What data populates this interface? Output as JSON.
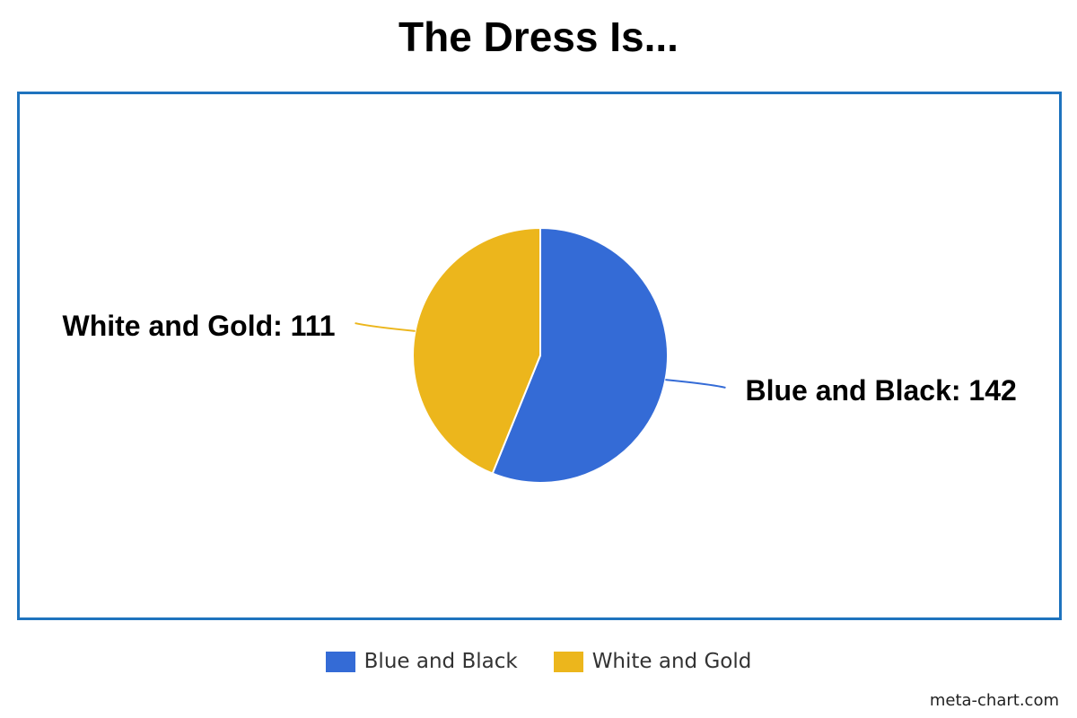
{
  "chart_data": {
    "type": "pie",
    "title": "The Dress Is...",
    "slices": [
      {
        "name": "Blue and Black",
        "value": 142,
        "label": "Blue and Black: 142",
        "color": "#346bd6"
      },
      {
        "name": "White and Gold",
        "value": 111,
        "label": "White and Gold: 111",
        "color": "#ecb61c"
      }
    ],
    "legend_placement": "bottom",
    "frame_color": "#1e73be"
  },
  "footer": {
    "credit": "meta-chart.com"
  }
}
